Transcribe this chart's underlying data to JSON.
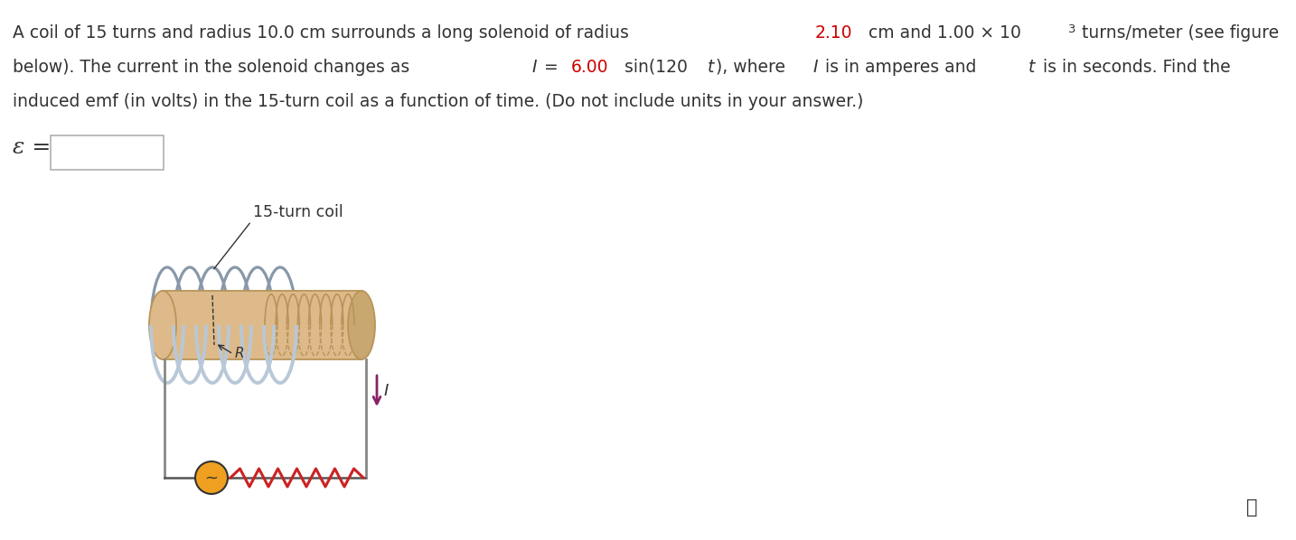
{
  "bg_color": "#ffffff",
  "text_color": "#333333",
  "red_color": "#cc0000",
  "fig_width": 14.34,
  "fig_height": 5.98,
  "dpi": 100,
  "line1_parts": [
    [
      "A coil of 15 turns and radius 10.0 cm surrounds a long solenoid of radius ",
      "#333333",
      "normal",
      false
    ],
    [
      "2.10",
      "#cc0000",
      "normal",
      false
    ],
    [
      " cm and 1.00 × 10",
      "#333333",
      "normal",
      false
    ],
    [
      "3",
      "#333333",
      "normal",
      true
    ],
    [
      " turns/meter (see figure",
      "#333333",
      "normal",
      false
    ]
  ],
  "line2_parts": [
    [
      "below). The current in the solenoid changes as ",
      "#333333",
      "normal",
      false
    ],
    [
      "I",
      "#333333",
      "italic",
      false
    ],
    [
      " = ",
      "#333333",
      "normal",
      false
    ],
    [
      "6.00",
      "#cc0000",
      "normal",
      false
    ],
    [
      " sin(120",
      "#333333",
      "normal",
      false
    ],
    [
      "t",
      "#333333",
      "italic",
      false
    ],
    [
      "), where ",
      "#333333",
      "normal",
      false
    ],
    [
      "I",
      "#333333",
      "italic",
      false
    ],
    [
      " is in amperes and ",
      "#333333",
      "normal",
      false
    ],
    [
      "t",
      "#333333",
      "italic",
      false
    ],
    [
      " is in seconds. Find the",
      "#333333",
      "normal",
      false
    ]
  ],
  "line3_parts": [
    [
      "induced emf (in volts) in the 15-turn coil as a function of time. (Do not include units in your answer.)",
      "#333333",
      "normal",
      false
    ]
  ],
  "epsilon_label": "ε =",
  "solenoid_label": "15-turn coil",
  "R_label": "R",
  "I_label": "I",
  "info_symbol": "ⓘ",
  "sol_color": "#DEBA8A",
  "sol_dark": "#B8945A",
  "sol_right_color": "#C8A870",
  "coil_color": "#B8C8D8",
  "coil_dark": "#8898A8",
  "resistor_color": "#CC2222",
  "source_color": "#F0A020",
  "wire_color": "#888888",
  "arrow_color": "#882266",
  "circuit_wire_color": "#555555"
}
